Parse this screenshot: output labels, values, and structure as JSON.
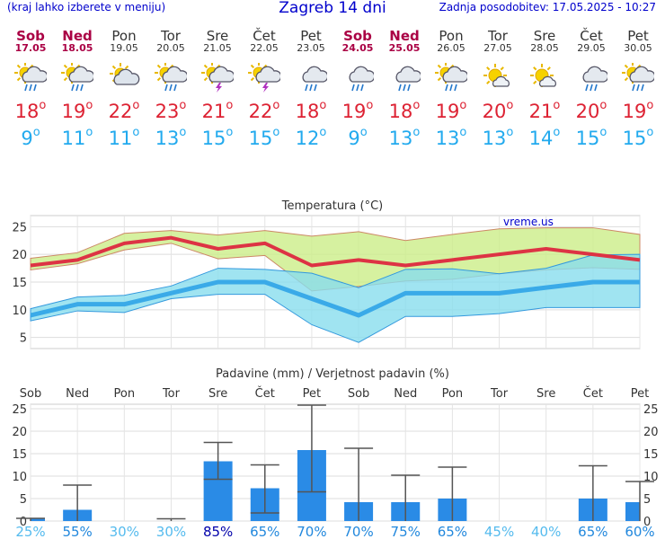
{
  "header": {
    "left": "(kraj lahko izberete v meniju)",
    "title": "Zagreb 14 dni",
    "right": "Zadnja posodobitev: 17.05.2025 - 10:27"
  },
  "days": [
    {
      "name": "Sob",
      "date": "17.05",
      "weekend": true,
      "icon": "rain-sun",
      "max": "18",
      "min": "9"
    },
    {
      "name": "Ned",
      "date": "18.05",
      "weekend": true,
      "icon": "rain-sun",
      "max": "19",
      "min": "11"
    },
    {
      "name": "Pon",
      "date": "19.05",
      "weekend": false,
      "icon": "partly-cloudy",
      "max": "22",
      "min": "11"
    },
    {
      "name": "Tor",
      "date": "20.05",
      "weekend": false,
      "icon": "rain-sun",
      "max": "23",
      "min": "13"
    },
    {
      "name": "Sre",
      "date": "21.05",
      "weekend": false,
      "icon": "storm-sun",
      "max": "21",
      "min": "15"
    },
    {
      "name": "Čet",
      "date": "22.05",
      "weekend": false,
      "icon": "storm-sun",
      "max": "22",
      "min": "15"
    },
    {
      "name": "Pet",
      "date": "23.05",
      "weekend": false,
      "icon": "rain-cloud",
      "max": "18",
      "min": "12"
    },
    {
      "name": "Sob",
      "date": "24.05",
      "weekend": true,
      "icon": "rain-cloud",
      "max": "19",
      "min": "9"
    },
    {
      "name": "Ned",
      "date": "25.05",
      "weekend": true,
      "icon": "rain-cloud",
      "max": "18",
      "min": "13"
    },
    {
      "name": "Pon",
      "date": "26.05",
      "weekend": false,
      "icon": "rain-sun",
      "max": "19",
      "min": "13"
    },
    {
      "name": "Tor",
      "date": "27.05",
      "weekend": false,
      "icon": "sun-cloud-small",
      "max": "20",
      "min": "13"
    },
    {
      "name": "Sre",
      "date": "28.05",
      "weekend": false,
      "icon": "sun-cloud-small",
      "max": "21",
      "min": "14"
    },
    {
      "name": "Čet",
      "date": "29.05",
      "weekend": false,
      "icon": "rain-cloud",
      "max": "20",
      "min": "15"
    },
    {
      "name": "Pet",
      "date": "30.05",
      "weekend": false,
      "icon": "rain-sun",
      "max": "19",
      "min": "15"
    }
  ],
  "colors": {
    "max": "#dd2233",
    "min": "#22aaee",
    "weekend": "#aa0044",
    "bar": "#2a8be6",
    "band_max": "#ccee88",
    "band_min": "#88ddee",
    "band_overlap": "#77cc88"
  },
  "chart_data": [
    {
      "type": "line",
      "title": "Temperatura (°C)",
      "watermark": "vreme.us",
      "ylim": [
        3,
        27
      ],
      "yticks": [
        5,
        10,
        15,
        20,
        25
      ],
      "grid": true,
      "series": [
        {
          "name": "max",
          "values": [
            18,
            19,
            22,
            23,
            21,
            22,
            18,
            19,
            18,
            19,
            20,
            21,
            20,
            19
          ],
          "band_low": [
            17.2,
            18.3,
            20.8,
            22,
            19.2,
            19.8,
            13.4,
            14.2,
            15.2,
            15.5,
            16.5,
            17.2,
            17.6,
            17.3
          ],
          "band_high": [
            19.3,
            20.3,
            23.8,
            24.3,
            23.5,
            24.3,
            23.3,
            24.1,
            22.5,
            23.6,
            24.6,
            24.8,
            24.8,
            23.6
          ]
        },
        {
          "name": "min",
          "values": [
            9,
            11,
            11,
            13,
            15,
            15,
            12,
            9,
            13,
            13,
            13,
            14,
            15,
            15
          ],
          "band_low": [
            8,
            9.8,
            9.5,
            12,
            12.8,
            12.8,
            7.3,
            4.1,
            8.8,
            8.8,
            9.3,
            10.4,
            10.4,
            10.4
          ],
          "band_high": [
            10.2,
            12.3,
            12.6,
            14.3,
            17.5,
            17.3,
            16.6,
            14,
            17.3,
            17.4,
            16.5,
            17.5,
            19.9,
            20
          ]
        }
      ]
    },
    {
      "type": "bar",
      "title": "Padavine (mm) / Verjetnost padavin (%)",
      "categories": [
        "Sob",
        "Ned",
        "Pon",
        "Tor",
        "Sre",
        "Čet",
        "Pet",
        "Sob",
        "Ned",
        "Pon",
        "Tor",
        "Sre",
        "Čet",
        "Pet"
      ],
      "ylim": [
        0,
        26
      ],
      "yticks": [
        0,
        5,
        10,
        15,
        20,
        25
      ],
      "values": [
        0.5,
        2.5,
        0,
        0,
        13.3,
        7.3,
        15.8,
        4.2,
        4.2,
        5,
        0,
        0,
        5,
        4.2
      ],
      "whisker_low": [
        0,
        0,
        0,
        0,
        9.3,
        1.8,
        6.5,
        0,
        0,
        0,
        0,
        0,
        0,
        0
      ],
      "whisker_high": [
        0.6,
        8,
        0,
        0.5,
        17.5,
        12.5,
        25.8,
        16.2,
        10.2,
        12,
        0,
        0,
        12.3,
        8.8
      ],
      "probabilities": [
        "25%",
        "55%",
        "30%",
        "30%",
        "85%",
        "65%",
        "70%",
        "70%",
        "75%",
        "65%",
        "45%",
        "40%",
        "65%",
        "60%"
      ],
      "probability_values": [
        25,
        55,
        30,
        30,
        85,
        65,
        70,
        70,
        75,
        65,
        45,
        40,
        65,
        60
      ]
    }
  ]
}
